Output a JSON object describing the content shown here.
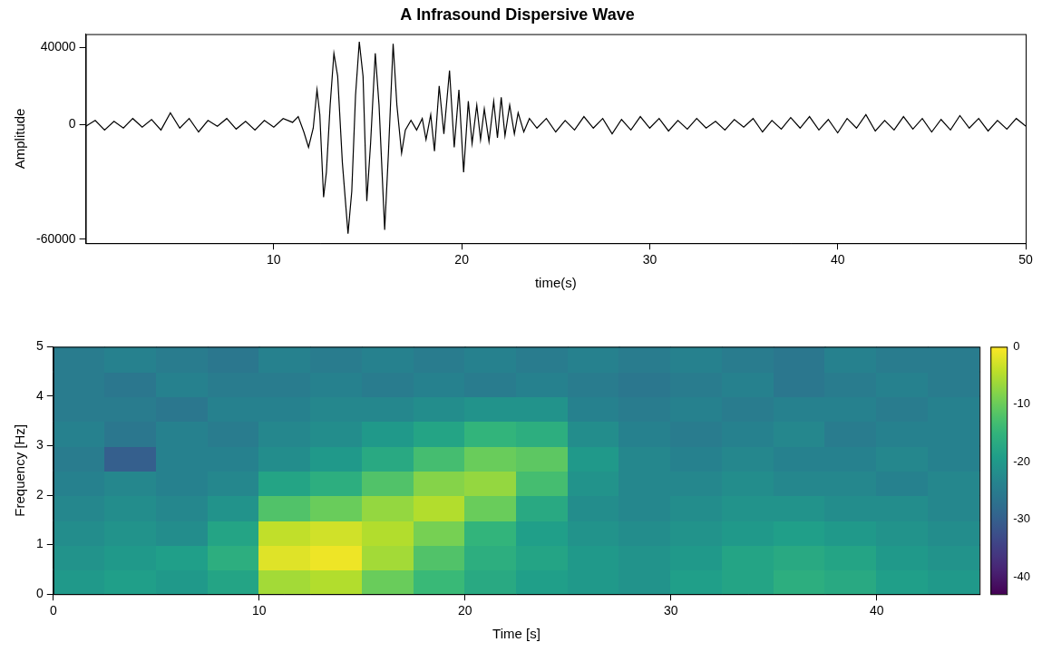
{
  "chart_data": [
    {
      "type": "line",
      "title": "A Infrasound Dispersive Wave",
      "xlabel": "time(s)",
      "ylabel": "Amplitude",
      "color": "#000000",
      "grid": false,
      "xlim": [
        0,
        50
      ],
      "xticks": [
        10,
        20,
        30,
        40,
        50
      ],
      "ylim": [
        -62000,
        47000
      ],
      "yticks": [
        -60000,
        0,
        40000
      ],
      "x": [
        0,
        0.5,
        1,
        1.5,
        2,
        2.5,
        3,
        3.5,
        4,
        4.5,
        5,
        5.5,
        6,
        6.5,
        7,
        7.5,
        8,
        8.5,
        9,
        9.5,
        10,
        10.5,
        11.0,
        11.3,
        11.6,
        11.85,
        12.1,
        12.3,
        12.45,
        12.65,
        12.8,
        13.0,
        13.2,
        13.4,
        13.65,
        13.95,
        14.15,
        14.35,
        14.55,
        14.75,
        14.95,
        15.15,
        15.4,
        15.6,
        15.9,
        16.1,
        16.35,
        16.55,
        16.8,
        17.0,
        17.3,
        17.6,
        17.9,
        18.1,
        18.35,
        18.55,
        18.8,
        19.05,
        19.35,
        19.6,
        19.85,
        20.1,
        20.35,
        20.55,
        20.8,
        21.0,
        21.2,
        21.45,
        21.7,
        21.9,
        22.1,
        22.3,
        22.55,
        22.8,
        23.0,
        23.3,
        23.6,
        24.0,
        24.5,
        25,
        25.5,
        26,
        26.5,
        27,
        27.5,
        28,
        28.5,
        29,
        29.5,
        30,
        30.5,
        31,
        31.5,
        32,
        32.5,
        33,
        33.5,
        34,
        34.5,
        35,
        35.5,
        36,
        36.5,
        37,
        37.5,
        38,
        38.5,
        39,
        39.5,
        40,
        40.5,
        41,
        41.5,
        42,
        42.5,
        43,
        43.5,
        44,
        44.5,
        45,
        45.5,
        46,
        46.5,
        47,
        47.5,
        48,
        48.5,
        49,
        49.5,
        50
      ],
      "values": [
        -1000,
        2000,
        -3000,
        1500,
        -2000,
        3000,
        -1500,
        2500,
        -3000,
        6000,
        -2000,
        3000,
        -4000,
        2000,
        -1000,
        3000,
        -2500,
        1500,
        -3000,
        2000,
        -1500,
        3000,
        1000,
        4000,
        -4000,
        -12000,
        -2000,
        18000,
        5000,
        -38000,
        -25000,
        10000,
        37000,
        25000,
        -20000,
        -57000,
        -35000,
        15000,
        43000,
        25000,
        -40000,
        -10000,
        37000,
        10000,
        -55000,
        -15000,
        42000,
        10000,
        -15000,
        -3000,
        2000,
        -3000,
        3000,
        -8000,
        5000,
        -14000,
        20000,
        -5000,
        28000,
        -12000,
        18000,
        -25000,
        12000,
        -10000,
        10000,
        -8000,
        8000,
        -9000,
        12000,
        -7000,
        14000,
        -6000,
        10000,
        -5000,
        6000,
        -4000,
        3000,
        -2000,
        3000,
        -4000,
        2000,
        -3000,
        4000,
        -2000,
        3000,
        -5000,
        2500,
        -3000,
        4000,
        -2000,
        3000,
        -3500,
        2000,
        -2500,
        3000,
        -2000,
        1500,
        -3000,
        2500,
        -1500,
        3000,
        -4000,
        2000,
        -2500,
        3500,
        -2000,
        4000,
        -3000,
        2500,
        -4500,
        3000,
        -2000,
        5000,
        -3500,
        2000,
        -3000,
        4000,
        -2500,
        3000,
        -4000,
        2500,
        -3000,
        4500,
        -2000,
        3000,
        -3500,
        2000,
        -2500,
        3000,
        -1000
      ]
    },
    {
      "type": "heatmap",
      "xlabel": "Time [s]",
      "ylabel": "Frequency [Hz]",
      "grid": false,
      "xlim": [
        0,
        45
      ],
      "xticks": [
        0,
        10,
        20,
        30,
        40
      ],
      "ylim": [
        0,
        5
      ],
      "yticks": [
        0,
        1,
        2,
        3,
        4,
        5
      ],
      "x_bins": [
        0,
        2.5,
        5,
        7.5,
        10,
        12.5,
        15,
        17.5,
        20,
        22.5,
        25,
        27.5,
        30,
        32.5,
        35,
        37.5,
        40,
        42.5,
        45
      ],
      "y_bins": [
        0,
        0.5,
        1,
        1.5,
        2,
        2.5,
        3,
        3.5,
        4,
        4.5,
        5
      ],
      "cells": [
        [
          -20,
          -19,
          -20,
          -18,
          -6,
          -5,
          -10,
          -14,
          -17,
          -19,
          -20,
          -21,
          -19,
          -18,
          -16,
          -17,
          -19,
          -20
        ],
        [
          -21,
          -20,
          -19,
          -16,
          -2,
          -1,
          -6,
          -12,
          -16,
          -18,
          -20,
          -21,
          -20,
          -18,
          -17,
          -18,
          -20,
          -21
        ],
        [
          -22,
          -21,
          -22,
          -18,
          -4,
          -3,
          -5,
          -9,
          -15,
          -19,
          -21,
          -22,
          -21,
          -20,
          -19,
          -20,
          -21,
          -22
        ],
        [
          -23,
          -22,
          -23,
          -21,
          -12,
          -10,
          -7,
          -5,
          -10,
          -17,
          -22,
          -23,
          -22,
          -21,
          -21,
          -22,
          -22,
          -23
        ],
        [
          -24,
          -23,
          -24,
          -23,
          -18,
          -16,
          -12,
          -8,
          -7,
          -13,
          -21,
          -23,
          -23,
          -22,
          -23,
          -23,
          -24,
          -23
        ],
        [
          -25,
          -30,
          -24,
          -24,
          -22,
          -20,
          -17,
          -13,
          -10,
          -11,
          -20,
          -23,
          -24,
          -23,
          -24,
          -24,
          -23,
          -24
        ],
        [
          -24,
          -26,
          -24,
          -25,
          -23,
          -22,
          -20,
          -18,
          -15,
          -16,
          -22,
          -24,
          -25,
          -24,
          -23,
          -25,
          -24,
          -24
        ],
        [
          -25,
          -25,
          -26,
          -24,
          -24,
          -23,
          -23,
          -22,
          -21,
          -21,
          -24,
          -25,
          -24,
          -25,
          -24,
          -24,
          -25,
          -24
        ],
        [
          -25,
          -26,
          -24,
          -25,
          -25,
          -24,
          -25,
          -24,
          -25,
          -24,
          -25,
          -26,
          -25,
          -24,
          -26,
          -25,
          -24,
          -25
        ],
        [
          -25,
          -24,
          -25,
          -26,
          -24,
          -25,
          -24,
          -25,
          -24,
          -25,
          -24,
          -25,
          -24,
          -25,
          -26,
          -24,
          -25,
          -25
        ]
      ],
      "colorbar": {
        "range": [
          -43,
          0
        ],
        "ticks": [
          0,
          -10,
          -20,
          -30,
          -40
        ]
      }
    }
  ]
}
